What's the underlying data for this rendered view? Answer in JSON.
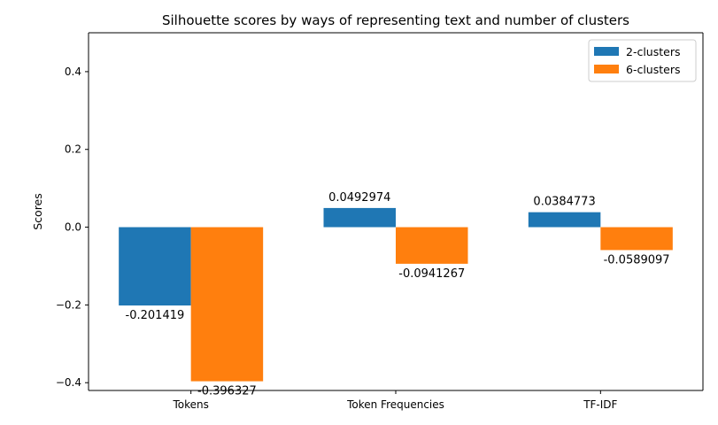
{
  "chart_data": {
    "type": "bar",
    "title": "Silhouette scores by ways of representing text and number of clusters",
    "xlabel": "",
    "ylabel": "Scores",
    "categories": [
      "Tokens",
      "Token Frequencies",
      "TF-IDF"
    ],
    "series": [
      {
        "name": "2-clusters",
        "color": "#1f77b4",
        "values": [
          -0.201419,
          0.0492974,
          0.0384773
        ],
        "labels": [
          "-0.201419",
          "0.0492974",
          "0.0384773"
        ]
      },
      {
        "name": "6-clusters",
        "color": "#ff7f0e",
        "values": [
          -0.396327,
          -0.0941267,
          -0.0589097
        ],
        "labels": [
          "-0.396327",
          "-0.0941267",
          "-0.0589097"
        ]
      }
    ],
    "ylim": [
      -0.42,
      0.5
    ],
    "yticks": [
      -0.4,
      -0.2,
      0.0,
      0.2,
      0.4
    ],
    "ytick_labels": [
      "−0.4",
      "−0.2",
      "0.0",
      "0.2",
      "0.4"
    ],
    "grid": false,
    "legend_position": "top-right"
  }
}
